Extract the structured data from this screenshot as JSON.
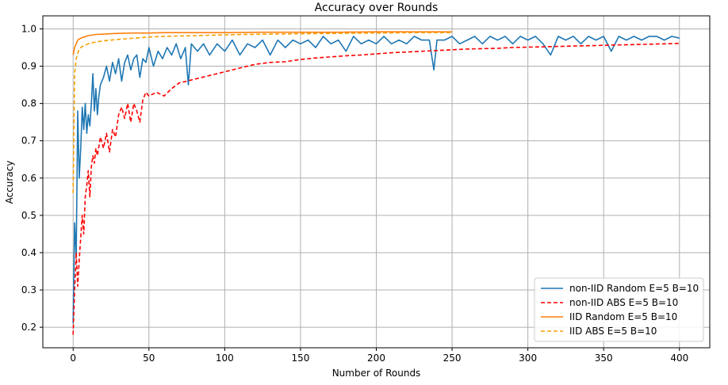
{
  "chart_data": {
    "type": "line",
    "title": "Accuracy over Rounds",
    "xlabel": "Number of Rounds",
    "ylabel": "Accuracy",
    "xlim": [
      -20,
      420
    ],
    "ylim": [
      0.145,
      1.035
    ],
    "xticks": [
      0,
      50,
      100,
      150,
      200,
      250,
      300,
      350,
      400
    ],
    "yticks": [
      0.2,
      0.3,
      0.4,
      0.5,
      0.6,
      0.7,
      0.8,
      0.9,
      1.0
    ],
    "xtick_labels": [
      "0",
      "50",
      "100",
      "150",
      "200",
      "250",
      "300",
      "350",
      "400"
    ],
    "ytick_labels": [
      "0.2",
      "0.3",
      "0.4",
      "0.5",
      "0.6",
      "0.7",
      "0.8",
      "0.9",
      "1.0"
    ],
    "grid": true,
    "legend_position": "lower-right",
    "series": [
      {
        "name": "non-IID Random E=5 B=10",
        "color": "#1f77b4",
        "dash": "solid",
        "x": [
          0,
          1,
          2,
          3,
          4,
          5,
          6,
          7,
          8,
          9,
          10,
          11,
          12,
          13,
          14,
          15,
          16,
          17,
          18,
          20,
          22,
          24,
          26,
          28,
          30,
          32,
          34,
          36,
          38,
          40,
          42,
          44,
          46,
          48,
          50,
          53,
          56,
          59,
          62,
          65,
          68,
          71,
          74,
          76,
          78,
          82,
          86,
          90,
          95,
          100,
          105,
          110,
          115,
          120,
          125,
          130,
          135,
          140,
          145,
          150,
          155,
          160,
          165,
          170,
          175,
          180,
          185,
          190,
          195,
          200,
          205,
          210,
          215,
          220,
          225,
          230,
          235,
          238,
          240,
          245,
          250,
          255,
          260,
          265,
          270,
          275,
          280,
          285,
          290,
          295,
          300,
          305,
          310,
          315,
          320,
          325,
          330,
          335,
          340,
          345,
          350,
          355,
          360,
          365,
          370,
          375,
          380,
          385,
          390,
          395,
          400
        ],
        "y": [
          0.21,
          0.48,
          0.39,
          0.78,
          0.6,
          0.68,
          0.79,
          0.73,
          0.8,
          0.72,
          0.77,
          0.74,
          0.8,
          0.88,
          0.78,
          0.84,
          0.77,
          0.82,
          0.85,
          0.87,
          0.9,
          0.86,
          0.91,
          0.88,
          0.92,
          0.86,
          0.91,
          0.93,
          0.89,
          0.92,
          0.93,
          0.87,
          0.92,
          0.91,
          0.95,
          0.9,
          0.94,
          0.92,
          0.95,
          0.93,
          0.96,
          0.92,
          0.95,
          0.85,
          0.96,
          0.94,
          0.96,
          0.93,
          0.96,
          0.94,
          0.97,
          0.93,
          0.96,
          0.95,
          0.97,
          0.93,
          0.97,
          0.95,
          0.97,
          0.96,
          0.97,
          0.95,
          0.98,
          0.96,
          0.97,
          0.94,
          0.98,
          0.96,
          0.97,
          0.96,
          0.98,
          0.96,
          0.97,
          0.96,
          0.98,
          0.97,
          0.97,
          0.89,
          0.97,
          0.97,
          0.98,
          0.96,
          0.97,
          0.98,
          0.96,
          0.98,
          0.97,
          0.98,
          0.96,
          0.98,
          0.97,
          0.98,
          0.96,
          0.93,
          0.98,
          0.97,
          0.98,
          0.96,
          0.98,
          0.97,
          0.98,
          0.94,
          0.98,
          0.97,
          0.98,
          0.97,
          0.98,
          0.98,
          0.97,
          0.98,
          0.975
        ]
      },
      {
        "name": "non-IID ABS E=5 B=10",
        "color": "#ff0000",
        "dash": "dashed",
        "x": [
          0,
          1,
          2,
          3,
          4,
          5,
          6,
          7,
          8,
          9,
          10,
          11,
          12,
          13,
          14,
          15,
          16,
          18,
          20,
          22,
          24,
          26,
          28,
          30,
          32,
          34,
          36,
          38,
          40,
          42,
          44,
          46,
          48,
          50,
          55,
          60,
          65,
          70,
          75,
          80,
          85,
          90,
          95,
          100,
          110,
          120,
          130,
          140,
          150,
          160,
          170,
          180,
          190,
          200,
          210,
          220,
          230,
          240,
          250,
          260,
          270,
          280,
          290,
          300,
          310,
          320,
          330,
          340,
          350,
          360,
          370,
          380,
          390,
          400
        ],
        "y": [
          0.18,
          0.3,
          0.4,
          0.31,
          0.38,
          0.44,
          0.5,
          0.45,
          0.55,
          0.58,
          0.62,
          0.55,
          0.63,
          0.66,
          0.64,
          0.68,
          0.66,
          0.71,
          0.68,
          0.72,
          0.67,
          0.73,
          0.71,
          0.77,
          0.79,
          0.76,
          0.8,
          0.75,
          0.8,
          0.78,
          0.75,
          0.81,
          0.83,
          0.82,
          0.83,
          0.82,
          0.84,
          0.855,
          0.86,
          0.865,
          0.87,
          0.875,
          0.88,
          0.885,
          0.895,
          0.905,
          0.91,
          0.912,
          0.918,
          0.922,
          0.925,
          0.928,
          0.93,
          0.933,
          0.936,
          0.938,
          0.94,
          0.942,
          0.944,
          0.946,
          0.947,
          0.948,
          0.95,
          0.951,
          0.952,
          0.953,
          0.954,
          0.955,
          0.956,
          0.957,
          0.958,
          0.959,
          0.96,
          0.961
        ]
      },
      {
        "name": "IID Random E=5 B=10",
        "color": "#ff7f0e",
        "dash": "solid",
        "x": [
          0,
          1,
          2,
          3,
          5,
          7,
          10,
          15,
          20,
          30,
          40,
          50,
          60,
          80,
          100,
          125,
          150,
          175,
          200,
          225,
          250
        ],
        "y": [
          0.93,
          0.95,
          0.96,
          0.97,
          0.975,
          0.978,
          0.982,
          0.985,
          0.986,
          0.988,
          0.989,
          0.989,
          0.99,
          0.99,
          0.99,
          0.991,
          0.991,
          0.991,
          0.992,
          0.992,
          0.992
        ]
      },
      {
        "name": "IID ABS E=5 B=10",
        "color": "#f5a000",
        "dash": "dashed",
        "x": [
          0,
          1,
          2,
          3,
          4,
          5,
          7,
          10,
          15,
          20,
          25,
          30,
          40,
          50,
          60,
          80,
          100,
          125,
          150,
          175,
          200,
          225,
          250
        ],
        "y": [
          0.56,
          0.88,
          0.92,
          0.935,
          0.945,
          0.95,
          0.955,
          0.96,
          0.965,
          0.968,
          0.97,
          0.972,
          0.975,
          0.978,
          0.98,
          0.982,
          0.984,
          0.986,
          0.987,
          0.988,
          0.989,
          0.99,
          0.99
        ]
      }
    ]
  }
}
